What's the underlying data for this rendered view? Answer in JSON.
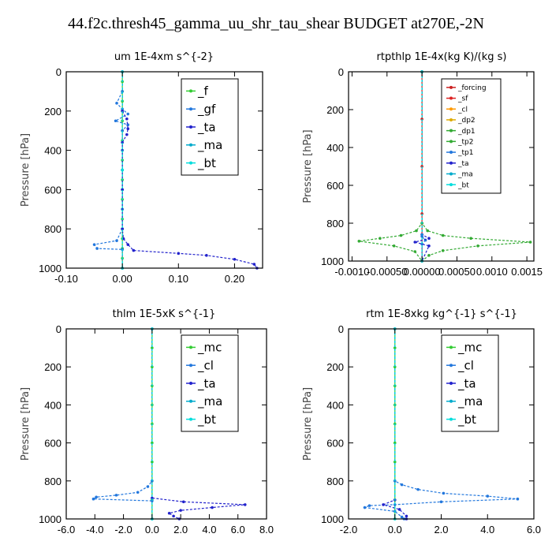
{
  "main_title": "44.f2c.thresh45_gamma_uu_shr_tau_shear  BUDGET at270E,-2N",
  "chart_data": [
    {
      "type": "line",
      "title": "um   1E-4xm s^{-2}",
      "ylabel": "Pressure [hPa]",
      "xlim": [
        -0.1,
        0.25
      ],
      "ylim": [
        1000,
        0
      ],
      "xticks": [
        "-0.10",
        "0.00",
        "0.10",
        "0.20"
      ],
      "xtick_values": [
        -0.1,
        0.0,
        0.1,
        0.2
      ],
      "yticks": [
        "0",
        "200",
        "400",
        "600",
        "800",
        "1000"
      ],
      "legend_position": "top-right",
      "legend_font": 15,
      "series": [
        {
          "name": "_f",
          "color": "#33cc33",
          "values": [
            [
              0,
              0
            ],
            [
              0,
              50
            ],
            [
              0,
              100
            ],
            [
              0,
              150
            ],
            [
              0,
              200
            ],
            [
              0,
              250
            ],
            [
              0,
              300
            ],
            [
              0,
              350
            ],
            [
              0,
              400
            ],
            [
              0,
              450
            ],
            [
              0,
              500
            ],
            [
              0,
              550
            ],
            [
              0,
              600
            ],
            [
              0,
              650
            ],
            [
              0,
              700
            ],
            [
              0,
              750
            ],
            [
              0,
              800
            ],
            [
              0,
              850
            ],
            [
              0,
              900
            ],
            [
              0,
              950
            ],
            [
              0,
              1000
            ]
          ]
        },
        {
          "name": "_gf",
          "color": "#2277dd",
          "values": [
            [
              0,
              0
            ],
            [
              0,
              100
            ],
            [
              -0.01,
              160
            ],
            [
              0,
              190
            ],
            [
              0.01,
              215
            ],
            [
              -0.012,
              250
            ],
            [
              0.01,
              270
            ],
            [
              0,
              300
            ],
            [
              0,
              400
            ],
            [
              0,
              500
            ],
            [
              0,
              600
            ],
            [
              0,
              700
            ],
            [
              0,
              800
            ],
            [
              -0.01,
              860
            ],
            [
              -0.05,
              880
            ],
            [
              -0.045,
              900
            ],
            [
              0,
              905
            ],
            [
              0,
              1000
            ]
          ]
        },
        {
          "name": "_ta",
          "color": "#2222cc",
          "values": [
            [
              0,
              0
            ],
            [
              0,
              200
            ],
            [
              0.008,
              240
            ],
            [
              0.01,
              290
            ],
            [
              0.008,
              320
            ],
            [
              0,
              360
            ],
            [
              0,
              600
            ],
            [
              0,
              800
            ],
            [
              0.002,
              850
            ],
            [
              0.01,
              880
            ],
            [
              0.02,
              910
            ],
            [
              0.1,
              925
            ],
            [
              0.15,
              935
            ],
            [
              0.2,
              955
            ],
            [
              0.235,
              980
            ],
            [
              0.24,
              1000
            ]
          ]
        },
        {
          "name": "_ma",
          "color": "#00aacc",
          "values": [
            [
              0,
              0
            ],
            [
              0,
              500
            ],
            [
              0,
              1000
            ]
          ]
        },
        {
          "name": "_bt",
          "color": "#00dddd",
          "values": [
            [
              0,
              0
            ],
            [
              0,
              500
            ],
            [
              0,
              1000
            ]
          ]
        }
      ]
    },
    {
      "type": "line",
      "title": "rtpthlp   1E-4x(kg K)/(kg s)",
      "ylabel": "Pressure [hPa]",
      "xlim": [
        -0.00105,
        0.0016
      ],
      "ylim": [
        1000,
        0
      ],
      "xticks": [
        "-0.0010",
        "-0.00050",
        "0.00000",
        "0.00050",
        "0.0010",
        "0.0015"
      ],
      "xtick_values": [
        -0.001,
        -0.0005,
        0,
        0.0005,
        0.001,
        0.0015
      ],
      "yticks": [
        "0",
        "200",
        "400",
        "600",
        "800",
        "1000"
      ],
      "legend_position": "top-right",
      "legend_font": 9,
      "series": [
        {
          "name": "_forcing",
          "color": "#cc2222",
          "values": [
            [
              0,
              0
            ],
            [
              0,
              250
            ],
            [
              0,
              500
            ],
            [
              0,
              750
            ],
            [
              0,
              1000
            ]
          ]
        },
        {
          "name": "_sf",
          "color": "#dd2222",
          "values": [
            [
              0,
              0
            ],
            [
              0,
              1000
            ]
          ]
        },
        {
          "name": "_cl",
          "color": "#ff9900",
          "values": [
            [
              0,
              0
            ],
            [
              0,
              1000
            ]
          ]
        },
        {
          "name": "_dp2",
          "color": "#ddaa00",
          "values": [
            [
              0,
              0
            ],
            [
              0,
              1000
            ]
          ]
        },
        {
          "name": "_dp1",
          "color": "#33aa33",
          "values": [
            [
              0,
              0
            ],
            [
              0,
              800
            ],
            [
              -8e-05,
              840
            ],
            [
              -0.0003,
              865
            ],
            [
              -0.0006,
              880
            ],
            [
              -0.0009,
              895
            ],
            [
              -0.0004,
              920
            ],
            [
              -0.0001,
              950
            ],
            [
              0,
              1000
            ]
          ]
        },
        {
          "name": "_tp2",
          "color": "#33aa33",
          "values": [
            [
              0,
              0
            ],
            [
              0,
              800
            ],
            [
              8e-05,
              840
            ],
            [
              0.0003,
              865
            ],
            [
              0.0007,
              880
            ],
            [
              0.00155,
              900
            ],
            [
              0.0008,
              920
            ],
            [
              0.0003,
              945
            ],
            [
              0.0001,
              970
            ],
            [
              0,
              1000
            ]
          ]
        },
        {
          "name": "_tp1",
          "color": "#2277dd",
          "values": [
            [
              0,
              0
            ],
            [
              0,
              870
            ],
            [
              5e-05,
              890
            ],
            [
              0,
              910
            ],
            [
              0,
              1000
            ]
          ]
        },
        {
          "name": "_ta",
          "color": "#2222cc",
          "values": [
            [
              0,
              0
            ],
            [
              0,
              860
            ],
            [
              0.0001,
              880
            ],
            [
              -0.0001,
              900
            ],
            [
              0.0001,
              920
            ],
            [
              0,
              1000
            ]
          ]
        },
        {
          "name": "_ma",
          "color": "#00aacc",
          "values": [
            [
              0,
              0
            ],
            [
              0,
              1000
            ]
          ]
        },
        {
          "name": "_bt",
          "color": "#00dddd",
          "values": [
            [
              0,
              0
            ],
            [
              0,
              1000
            ]
          ]
        }
      ]
    },
    {
      "type": "line",
      "title": "thlm   1E-5xK s^{-1}",
      "ylabel": "Pressure [hPa]",
      "xlim": [
        -6.0,
        8.0
      ],
      "ylim": [
        1000,
        0
      ],
      "xticks": [
        "-6.0",
        "-4.0",
        "-2.0",
        "0.0",
        "2.0",
        "4.0",
        "6.0",
        "8.0"
      ],
      "xtick_values": [
        -6,
        -4,
        -2,
        0,
        2,
        4,
        6,
        8
      ],
      "yticks": [
        "0",
        "200",
        "400",
        "600",
        "800",
        "1000"
      ],
      "legend_position": "top-right",
      "legend_font": 15,
      "series": [
        {
          "name": "_mc",
          "color": "#33cc33",
          "values": [
            [
              0,
              0
            ],
            [
              0,
              100
            ],
            [
              0,
              200
            ],
            [
              0,
              300
            ],
            [
              0,
              400
            ],
            [
              0,
              500
            ],
            [
              0,
              600
            ],
            [
              0,
              700
            ],
            [
              0,
              800
            ],
            [
              0,
              900
            ],
            [
              0,
              1000
            ]
          ]
        },
        {
          "name": "_cl",
          "color": "#2277dd",
          "values": [
            [
              0,
              0
            ],
            [
              0,
              800
            ],
            [
              -0.3,
              830
            ],
            [
              -1.0,
              860
            ],
            [
              -2.5,
              875
            ],
            [
              -3.9,
              885
            ],
            [
              -4.1,
              895
            ],
            [
              0,
              905
            ],
            [
              0,
              1000
            ]
          ]
        },
        {
          "name": "_ta",
          "color": "#2222cc",
          "values": [
            [
              0,
              0
            ],
            [
              0,
              890
            ],
            [
              2.2,
              910
            ],
            [
              6.5,
              925
            ],
            [
              4.2,
              940
            ],
            [
              2.0,
              955
            ],
            [
              1.2,
              970
            ],
            [
              1.5,
              985
            ],
            [
              1.9,
              1000
            ]
          ]
        },
        {
          "name": "_ma",
          "color": "#00aacc",
          "values": [
            [
              0,
              0
            ],
            [
              0,
              1000
            ]
          ]
        },
        {
          "name": "_bt",
          "color": "#00dddd",
          "values": [
            [
              0,
              0
            ],
            [
              0,
              1000
            ]
          ]
        }
      ]
    },
    {
      "type": "line",
      "title": "rtm   1E-8xkg kg^{-1} s^{-1}",
      "ylabel": "Pressure [hPa]",
      "xlim": [
        -2.0,
        6.0
      ],
      "ylim": [
        1000,
        0
      ],
      "xticks": [
        "-2.0",
        "0.0",
        "2.0",
        "4.0",
        "6.0"
      ],
      "xtick_values": [
        -2,
        0,
        2,
        4,
        6
      ],
      "yticks": [
        "0",
        "200",
        "400",
        "600",
        "800",
        "1000"
      ],
      "legend_position": "top-right",
      "legend_font": 15,
      "series": [
        {
          "name": "_mc",
          "color": "#33cc33",
          "values": [
            [
              0,
              0
            ],
            [
              0,
              100
            ],
            [
              0,
              200
            ],
            [
              0,
              300
            ],
            [
              0,
              400
            ],
            [
              0,
              500
            ],
            [
              0,
              600
            ],
            [
              0,
              700
            ],
            [
              0,
              800
            ],
            [
              0,
              900
            ],
            [
              0,
              1000
            ]
          ]
        },
        {
          "name": "_cl",
          "color": "#2277dd",
          "values": [
            [
              0,
              0
            ],
            [
              0,
              800
            ],
            [
              0.3,
              820
            ],
            [
              1.0,
              845
            ],
            [
              2.1,
              865
            ],
            [
              4.0,
              880
            ],
            [
              5.3,
              895
            ],
            [
              2.0,
              910
            ],
            [
              0,
              925
            ],
            [
              -1.1,
              930
            ],
            [
              -1.3,
              940
            ],
            [
              0,
              960
            ],
            [
              0.3,
              990
            ],
            [
              0.4,
              1000
            ]
          ]
        },
        {
          "name": "_ta",
          "color": "#2222cc",
          "values": [
            [
              0,
              0
            ],
            [
              0,
              900
            ],
            [
              -0.5,
              925
            ],
            [
              0.2,
              950
            ],
            [
              0.5,
              985
            ],
            [
              0.5,
              1000
            ]
          ]
        },
        {
          "name": "_ma",
          "color": "#00aacc",
          "values": [
            [
              0,
              0
            ],
            [
              0,
              1000
            ]
          ]
        },
        {
          "name": "_bt",
          "color": "#00dddd",
          "values": [
            [
              0,
              0
            ],
            [
              0,
              1000
            ]
          ]
        }
      ]
    }
  ]
}
